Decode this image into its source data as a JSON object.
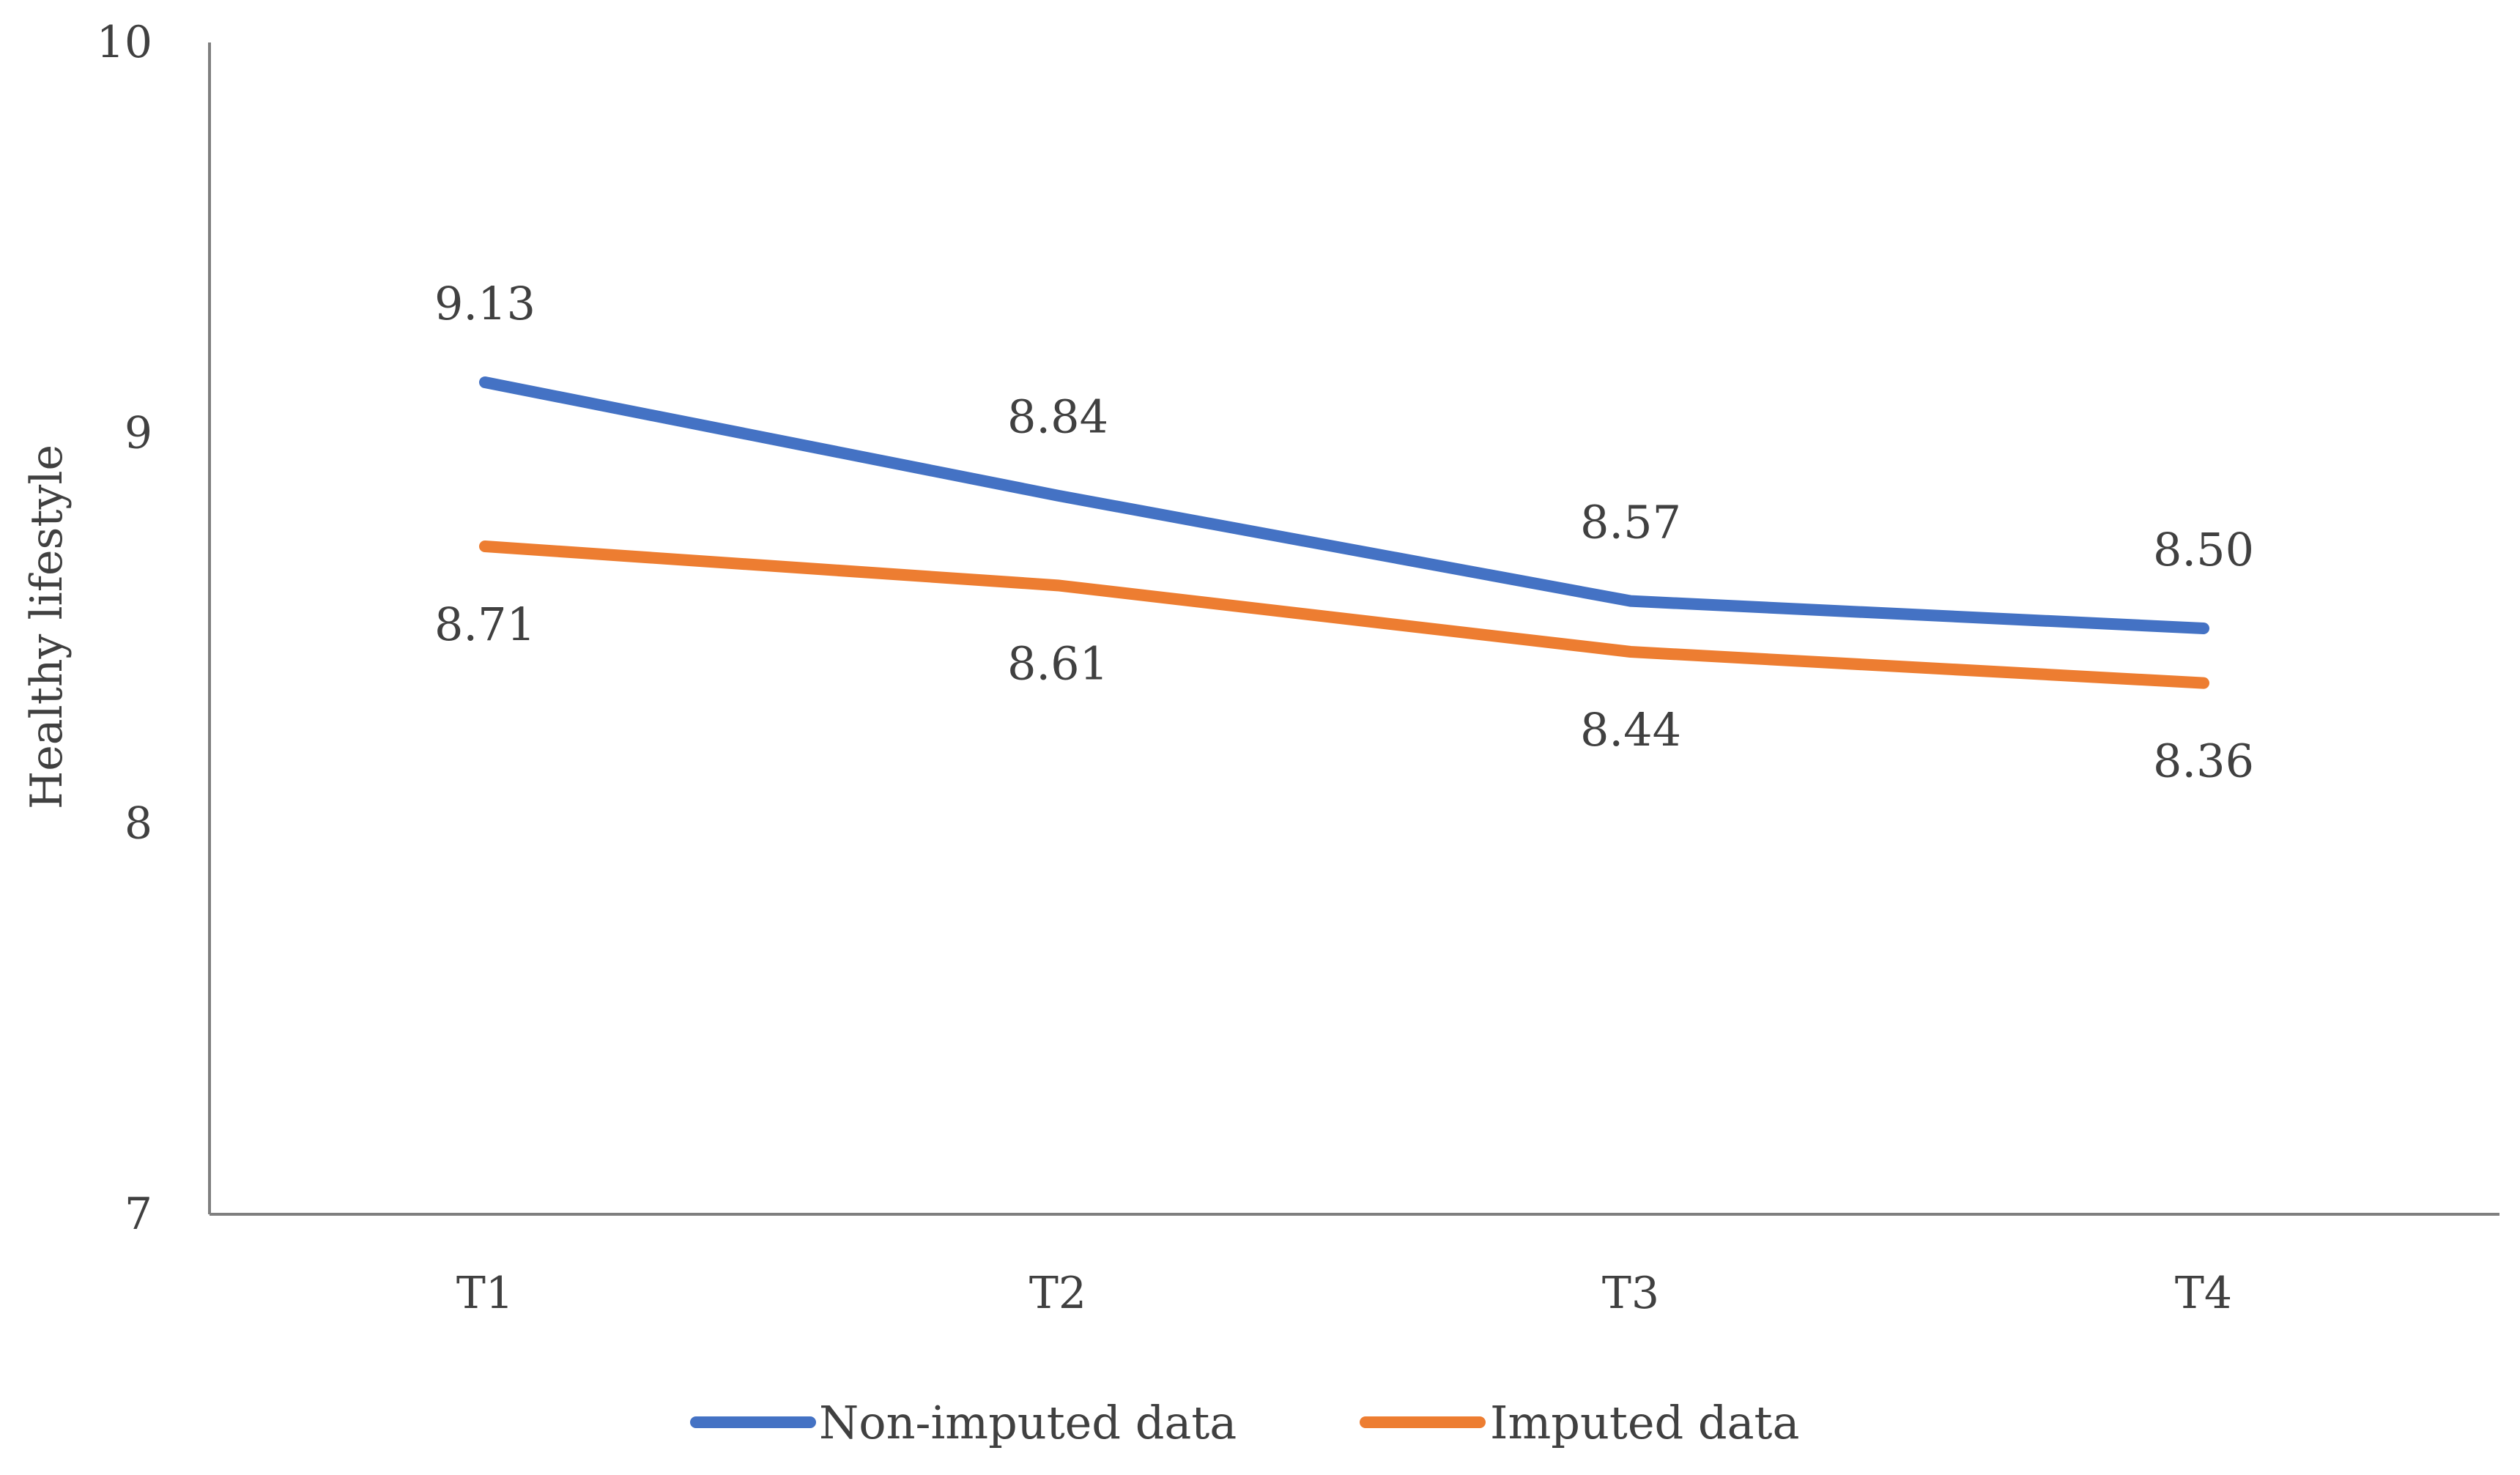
{
  "chart_data": {
    "type": "line",
    "title": "",
    "xlabel": "",
    "ylabel": "Healthy lifestyle",
    "categories": [
      "T1",
      "T2",
      "T3",
      "T4"
    ],
    "ylim": [
      7,
      10
    ],
    "yticks": [
      7,
      8,
      9,
      10
    ],
    "grid": false,
    "legend_position": "bottom",
    "series": [
      {
        "name": "Non-imputed data",
        "color": "#4472C4",
        "values": [
          9.13,
          8.84,
          8.57,
          8.5
        ],
        "labels": [
          "9.13",
          "8.84",
          "8.57",
          "8.50"
        ],
        "label_position": "above"
      },
      {
        "name": "Imputed data",
        "color": "#ED7D31",
        "values": [
          8.71,
          8.61,
          8.44,
          8.36
        ],
        "labels": [
          "8.71",
          "8.61",
          "8.44",
          "8.36"
        ],
        "label_position": "below"
      }
    ]
  }
}
